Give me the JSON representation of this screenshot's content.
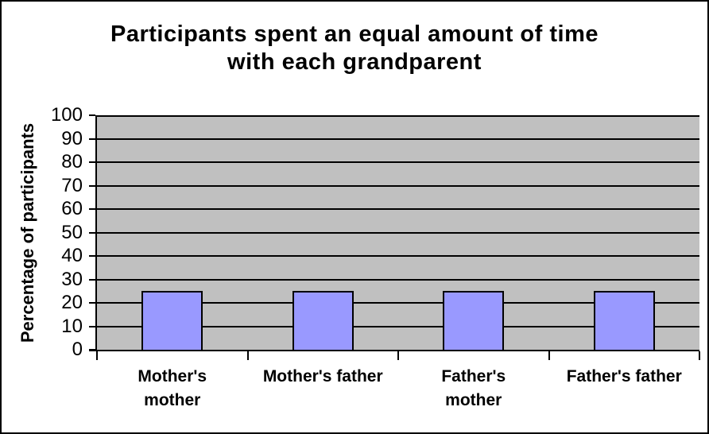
{
  "chart_data": {
    "type": "bar",
    "title": "Participants spent an equal amount of time with each grandparent",
    "title_lines": [
      "Participants spent an equal amount of time",
      "with each grandparent"
    ],
    "categories": [
      "Mother's\nmother",
      "Mother's father",
      "Father's\nmother",
      "Father's father"
    ],
    "values": [
      25,
      25,
      25,
      25
    ],
    "xlabel": "",
    "ylabel": "Percentage of participants",
    "ylim": [
      0,
      100
    ],
    "ytick_step": 10,
    "yticks": [
      0,
      10,
      20,
      30,
      40,
      50,
      60,
      70,
      80,
      90,
      100
    ],
    "grid": "horizontal-on",
    "legend": "none",
    "colors": {
      "bar_fill": "#9999FF",
      "bar_border": "#000000",
      "plot_background": "#C0C0C0",
      "gridline": "#000000",
      "chart_background": "#FFFFFF",
      "frame_border": "#000000",
      "text": "#000000"
    }
  }
}
